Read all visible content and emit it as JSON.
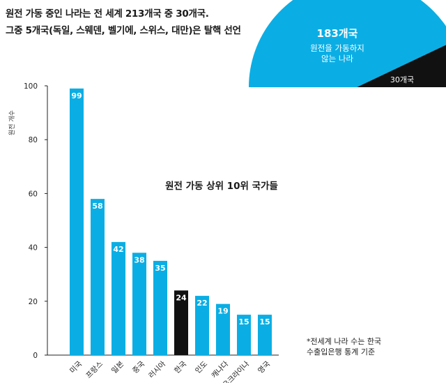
{
  "headline": {
    "line1": "원전 가동 중인 나라는 전 세계 213개국 중 30개국.",
    "line2": "그중 5개국(독일, 스웨덴, 벨기에, 스위스, 대만)은 탈핵 선언"
  },
  "pie": {
    "total_countries": 213,
    "segments": [
      {
        "label": "183개국",
        "sublabel_1": "원전을 가동하지",
        "sublabel_2": "않는 나라",
        "value": 183,
        "color": "#0aaee4"
      },
      {
        "label": "30개국",
        "value": 30,
        "color": "#111111"
      }
    ]
  },
  "chart_data": {
    "type": "bar",
    "title": "원전 가동 상위 10위 국가들",
    "ylabel": "원전 개수",
    "ylim": [
      0,
      100
    ],
    "yticks": [
      0,
      20,
      40,
      60,
      80,
      100
    ],
    "grid": false,
    "categories": [
      "미국",
      "프랑스",
      "일본",
      "중국",
      "러시아",
      "한국",
      "인도",
      "캐나다",
      "우크라이나",
      "영국"
    ],
    "values": [
      99,
      58,
      42,
      38,
      35,
      24,
      22,
      19,
      15,
      15
    ],
    "colors": [
      "#0aaee4",
      "#0aaee4",
      "#0aaee4",
      "#0aaee4",
      "#0aaee4",
      "#111111",
      "#0aaee4",
      "#0aaee4",
      "#0aaee4",
      "#0aaee4"
    ]
  },
  "note": {
    "line1": "*전세계 나라 수는 한국",
    "line2": "수출입은행 통계 기준"
  }
}
